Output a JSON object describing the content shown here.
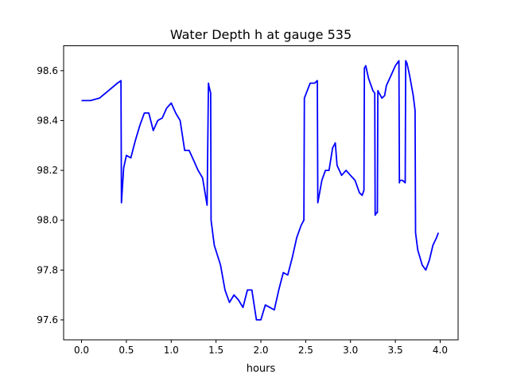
{
  "chart_data": {
    "type": "line",
    "title": "Water Depth h at gauge 535",
    "xlabel": "hours",
    "ylabel": "",
    "xlim": [
      -0.2,
      4.2
    ],
    "ylim": [
      97.52,
      98.7
    ],
    "xticks": [
      0.0,
      0.5,
      1.0,
      1.5,
      2.0,
      2.5,
      3.0,
      3.5,
      4.0
    ],
    "xtick_labels": [
      "0.0",
      "0.5",
      "1.0",
      "1.5",
      "2.0",
      "2.5",
      "3.0",
      "3.5",
      "4.0"
    ],
    "yticks": [
      97.6,
      97.8,
      98.0,
      98.2,
      98.4,
      98.6
    ],
    "ytick_labels": [
      "97.6",
      "97.8",
      "98.0",
      "98.2",
      "98.4",
      "98.6"
    ],
    "grid": false,
    "series": [
      {
        "color": "#0000ff",
        "x": [
          0.0,
          0.1,
          0.2,
          0.3,
          0.4,
          0.44,
          0.445,
          0.47,
          0.5,
          0.55,
          0.6,
          0.65,
          0.7,
          0.75,
          0.8,
          0.85,
          0.9,
          0.95,
          1.0,
          1.05,
          1.1,
          1.15,
          1.2,
          1.25,
          1.3,
          1.35,
          1.4,
          1.415,
          1.42,
          1.44,
          1.445,
          1.48,
          1.55,
          1.6,
          1.65,
          1.7,
          1.75,
          1.8,
          1.85,
          1.9,
          1.95,
          2.0,
          2.05,
          2.1,
          2.15,
          2.2,
          2.25,
          2.3,
          2.35,
          2.4,
          2.45,
          2.48,
          2.485,
          2.55,
          2.6,
          2.63,
          2.635,
          2.68,
          2.72,
          2.76,
          2.8,
          2.83,
          2.85,
          2.9,
          2.95,
          3.0,
          3.05,
          3.1,
          3.13,
          3.15,
          3.155,
          3.17,
          3.2,
          3.25,
          3.27,
          3.275,
          3.29,
          3.3,
          3.305,
          3.35,
          3.38,
          3.4,
          3.45,
          3.5,
          3.54,
          3.545,
          3.55,
          3.58,
          3.61,
          3.615,
          3.63,
          3.66,
          3.7,
          3.72,
          3.725,
          3.75,
          3.8,
          3.84,
          3.88,
          3.92,
          3.96,
          3.98
        ],
        "y": [
          98.48,
          98.48,
          98.49,
          98.52,
          98.55,
          98.56,
          98.07,
          98.21,
          98.26,
          98.25,
          98.32,
          98.38,
          98.43,
          98.43,
          98.36,
          98.4,
          98.41,
          98.45,
          98.47,
          98.43,
          98.4,
          98.28,
          98.28,
          98.24,
          98.2,
          98.17,
          98.06,
          98.55,
          98.54,
          98.51,
          98.0,
          97.9,
          97.82,
          97.72,
          97.67,
          97.7,
          97.68,
          97.65,
          97.72,
          97.72,
          97.6,
          97.6,
          97.66,
          97.65,
          97.64,
          97.72,
          97.79,
          97.78,
          97.85,
          97.93,
          97.98,
          98.0,
          98.49,
          98.55,
          98.55,
          98.56,
          98.07,
          98.16,
          98.2,
          98.2,
          98.29,
          98.31,
          98.22,
          98.18,
          98.2,
          98.18,
          98.16,
          98.11,
          98.1,
          98.12,
          98.61,
          98.62,
          98.57,
          98.52,
          98.51,
          98.02,
          98.03,
          98.03,
          98.52,
          98.49,
          98.5,
          98.54,
          98.58,
          98.62,
          98.64,
          98.15,
          98.16,
          98.16,
          98.15,
          98.64,
          98.63,
          98.58,
          98.5,
          98.44,
          97.95,
          97.88,
          97.82,
          97.8,
          97.84,
          97.9,
          97.93,
          97.95
        ]
      }
    ]
  }
}
